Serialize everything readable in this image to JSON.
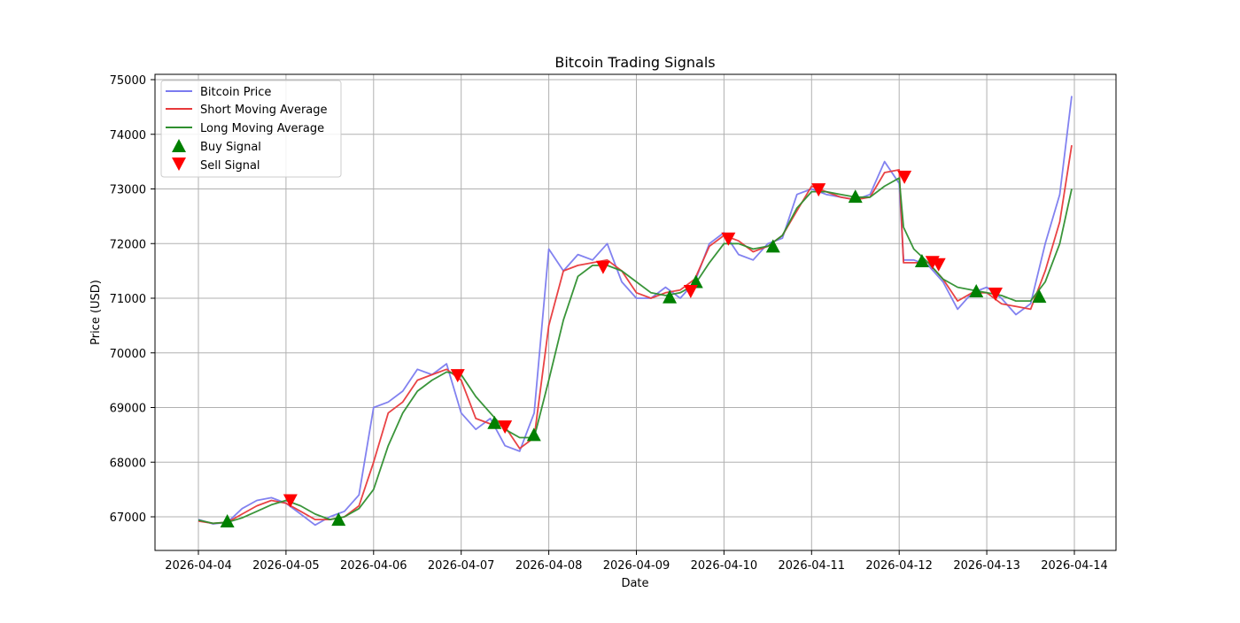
{
  "chart_data": {
    "type": "line",
    "title": "Bitcoin Trading Signals",
    "xlabel": "Date",
    "ylabel": "Price (USD)",
    "x_ticks": [
      "2026-04-04",
      "2026-04-05",
      "2026-04-06",
      "2026-04-07",
      "2026-04-08",
      "2026-04-09",
      "2026-04-10",
      "2026-04-11",
      "2026-04-12",
      "2026-04-13",
      "2026-04-14"
    ],
    "y_ticks": [
      67000,
      68000,
      69000,
      70000,
      71000,
      72000,
      73000,
      74000,
      75000
    ],
    "xlim_days": [
      -0.49,
      10.47
    ],
    "ylim": [
      66380,
      75080
    ],
    "grid": true,
    "legend_position": "upper left",
    "legend": [
      "Bitcoin Price",
      "Short Moving Average",
      "Long Moving Average",
      "Buy Signal",
      "Sell Signal"
    ],
    "colors": {
      "price": "#7b7bef",
      "short_ma": "#e8393b",
      "long_ma": "#2f8f2f",
      "buy": "#008000",
      "sell": "#ff0000"
    },
    "x_unit": "days since 2026-04-04",
    "series": [
      {
        "name": "Bitcoin Price",
        "x": [
          0,
          0.167,
          0.333,
          0.5,
          0.667,
          0.833,
          1,
          1.167,
          1.333,
          1.5,
          1.667,
          1.833,
          2,
          2.167,
          2.333,
          2.5,
          2.667,
          2.833,
          3,
          3.167,
          3.333,
          3.5,
          3.667,
          3.833,
          4,
          4.167,
          4.333,
          4.5,
          4.667,
          4.833,
          5,
          5.167,
          5.333,
          5.5,
          5.667,
          5.833,
          6,
          6.167,
          6.333,
          6.5,
          6.667,
          6.833,
          7,
          7.167,
          7.333,
          7.5,
          7.667,
          7.833,
          8,
          8.05,
          8.167,
          8.333,
          8.5,
          8.667,
          8.833,
          9,
          9.167,
          9.333,
          9.5,
          9.667,
          9.833,
          9.97
        ],
        "values": [
          66950,
          66870,
          66900,
          67150,
          67300,
          67350,
          67250,
          67050,
          66850,
          67000,
          67100,
          67400,
          69000,
          69100,
          69300,
          69700,
          69600,
          69800,
          68900,
          68600,
          68800,
          68300,
          68200,
          68900,
          71900,
          71500,
          71800,
          71700,
          72000,
          71300,
          71000,
          71000,
          71200,
          71000,
          71300,
          72000,
          72200,
          71800,
          71700,
          72000,
          72100,
          72900,
          73000,
          72900,
          72850,
          72800,
          72900,
          73500,
          73100,
          71700,
          71700,
          71600,
          71300,
          70800,
          71100,
          71200,
          71000,
          70700,
          70900,
          72000,
          72900,
          74700
        ]
      },
      {
        "name": "Short Moving Average",
        "x": [
          0,
          0.167,
          0.333,
          0.5,
          0.667,
          0.833,
          1,
          1.167,
          1.333,
          1.5,
          1.667,
          1.833,
          2,
          2.167,
          2.333,
          2.5,
          2.667,
          2.833,
          3,
          3.167,
          3.333,
          3.5,
          3.667,
          3.833,
          4,
          4.167,
          4.333,
          4.5,
          4.667,
          4.833,
          5,
          5.167,
          5.333,
          5.5,
          5.667,
          5.833,
          6,
          6.167,
          6.333,
          6.5,
          6.667,
          6.833,
          7,
          7.167,
          7.333,
          7.5,
          7.667,
          7.833,
          8,
          8.05,
          8.167,
          8.333,
          8.5,
          8.667,
          8.833,
          9,
          9.167,
          9.333,
          9.5,
          9.667,
          9.833,
          9.97
        ],
        "values": [
          66920,
          66880,
          66900,
          67050,
          67200,
          67300,
          67250,
          67100,
          66950,
          66950,
          67000,
          67200,
          68000,
          68900,
          69100,
          69500,
          69600,
          69700,
          69500,
          68800,
          68700,
          68650,
          68250,
          68450,
          70500,
          71500,
          71600,
          71650,
          71700,
          71500,
          71100,
          71000,
          71100,
          71150,
          71350,
          71950,
          72150,
          72050,
          71850,
          71950,
          72150,
          72600,
          73050,
          72950,
          72850,
          72800,
          72850,
          73300,
          73350,
          71650,
          71650,
          71650,
          71350,
          70950,
          71100,
          71100,
          70900,
          70850,
          70800,
          71500,
          72400,
          73800
        ]
      },
      {
        "name": "Long Moving Average",
        "x": [
          0,
          0.167,
          0.333,
          0.5,
          0.667,
          0.833,
          1,
          1.167,
          1.333,
          1.5,
          1.667,
          1.833,
          2,
          2.167,
          2.333,
          2.5,
          2.667,
          2.833,
          3,
          3.167,
          3.333,
          3.5,
          3.667,
          3.833,
          4,
          4.167,
          4.333,
          4.5,
          4.667,
          4.833,
          5,
          5.167,
          5.333,
          5.5,
          5.667,
          5.833,
          6,
          6.167,
          6.333,
          6.5,
          6.667,
          6.833,
          7,
          7.167,
          7.333,
          7.5,
          7.667,
          7.833,
          8,
          8.05,
          8.167,
          8.333,
          8.5,
          8.667,
          8.833,
          9,
          9.167,
          9.333,
          9.5,
          9.667,
          9.833,
          9.97
        ],
        "values": [
          66940,
          66880,
          66900,
          66980,
          67100,
          67220,
          67300,
          67200,
          67050,
          66950,
          67000,
          67150,
          67500,
          68300,
          68900,
          69300,
          69500,
          69650,
          69600,
          69200,
          68900,
          68600,
          68450,
          68450,
          69500,
          70600,
          71400,
          71600,
          71600,
          71500,
          71300,
          71100,
          71050,
          71100,
          71250,
          71650,
          72000,
          72000,
          71900,
          71950,
          72150,
          72650,
          72950,
          72950,
          72900,
          72850,
          72850,
          73050,
          73200,
          72300,
          71900,
          71650,
          71350,
          71200,
          71150,
          71100,
          71050,
          70950,
          70950,
          71300,
          72000,
          73000
        ]
      }
    ],
    "buy_signals": [
      {
        "x": 0.33,
        "price": 66920
      },
      {
        "x": 1.6,
        "price": 66950
      },
      {
        "x": 3.38,
        "price": 68720
      },
      {
        "x": 3.83,
        "price": 68500
      },
      {
        "x": 5.38,
        "price": 71020
      },
      {
        "x": 5.68,
        "price": 71300
      },
      {
        "x": 6.56,
        "price": 71950
      },
      {
        "x": 7.5,
        "price": 72860
      },
      {
        "x": 8.26,
        "price": 71680
      },
      {
        "x": 8.88,
        "price": 71130
      },
      {
        "x": 9.6,
        "price": 71030
      }
    ],
    "sell_signals": [
      {
        "x": 1.05,
        "price": 67300
      },
      {
        "x": 2.96,
        "price": 69590
      },
      {
        "x": 3.5,
        "price": 68650
      },
      {
        "x": 4.62,
        "price": 71570
      },
      {
        "x": 5.62,
        "price": 71130
      },
      {
        "x": 6.05,
        "price": 72090
      },
      {
        "x": 7.08,
        "price": 72990
      },
      {
        "x": 8.06,
        "price": 73220
      },
      {
        "x": 8.38,
        "price": 71660
      },
      {
        "x": 8.45,
        "price": 71620
      },
      {
        "x": 9.1,
        "price": 71080
      }
    ]
  }
}
